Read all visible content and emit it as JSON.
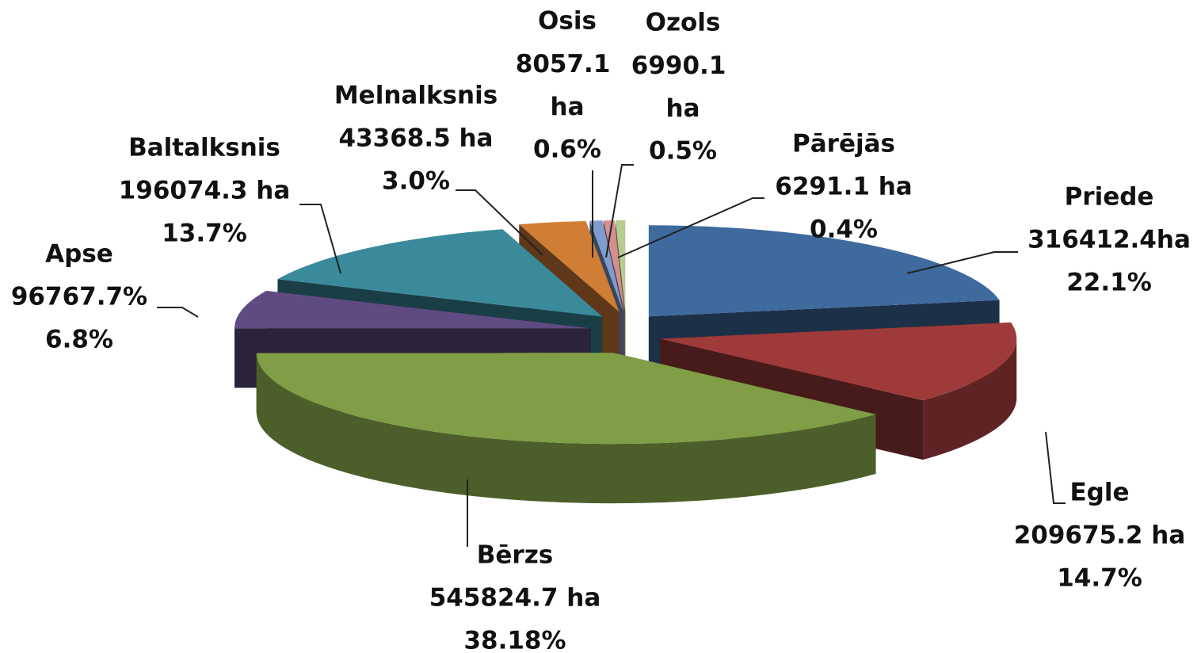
{
  "chart_data": {
    "type": "pie",
    "categories": [
      "Priede",
      "Egle",
      "Bērzs",
      "Apse",
      "Baltalksnis",
      "Melnalksnis",
      "Osis",
      "Ozols",
      "Pārējās"
    ],
    "values": [
      316412.4,
      209675.2,
      545824.7,
      96767.7,
      196074.3,
      43368.5,
      8057.1,
      6990.1,
      6291.1
    ],
    "value_labels": [
      "316412.4ha",
      "209675.2 ha",
      "545824.7 ha",
      "96767.7%",
      "196074.3 ha",
      "43368.5 ha",
      "8057.1 ha",
      "6990.1 ha",
      "6291.1 ha"
    ],
    "percentages": [
      22.1,
      14.7,
      38.18,
      6.8,
      13.7,
      3.0,
      0.6,
      0.5,
      0.4
    ],
    "percentage_labels": [
      "22.1%",
      "14.7%",
      "38.18%",
      "6.8%",
      "13.7%",
      "3.0%",
      "0.6%",
      "0.5%",
      "0.4%"
    ],
    "colors": [
      "#3f6a9e",
      "#9e3b3a",
      "#7f9e46",
      "#5f4b82",
      "#3a8a9c",
      "#d07d35",
      "#7f9cce",
      "#d48e8e",
      "#b7cc8f"
    ],
    "three_d": true,
    "exploded": true
  }
}
